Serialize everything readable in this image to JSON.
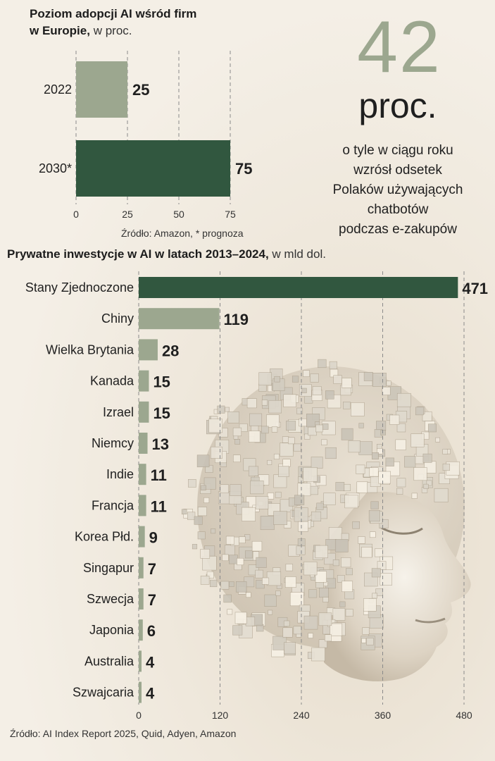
{
  "chart_data": [
    {
      "type": "bar",
      "orientation": "horizontal",
      "title": "Poziom adopcji AI wśród firm",
      "title_line2": "w Europie,",
      "unit": "w proc.",
      "categories": [
        "2022",
        "2030*"
      ],
      "values": [
        25,
        75
      ],
      "xlim": [
        0,
        75
      ],
      "xticks": [
        0,
        25,
        50,
        75
      ],
      "grid": true,
      "source": "Źródło: Amazon, * prognoza",
      "colors": [
        "#9ca78f",
        "#31573f"
      ]
    },
    {
      "type": "bar",
      "orientation": "horizontal",
      "title": "Prywatne inwestycje w AI w latach 2013–2024,",
      "unit": "w mld dol.",
      "categories": [
        "Stany Zjednoczone",
        "Chiny",
        "Wielka Brytania",
        "Kanada",
        "Izrael",
        "Niemcy",
        "Indie",
        "Francja",
        "Korea Płd.",
        "Singapur",
        "Szwecja",
        "Japonia",
        "Australia",
        "Szwajcaria"
      ],
      "values": [
        471,
        119,
        28,
        15,
        15,
        13,
        11,
        11,
        9,
        7,
        7,
        6,
        4,
        4
      ],
      "xlim": [
        0,
        480
      ],
      "xticks": [
        0,
        120,
        240,
        360,
        480
      ],
      "grid": true,
      "source": "Źródło: AI Index Report 2025, Quid, Adyen, Amazon",
      "colors": [
        "#31573f",
        "#9ca78f"
      ]
    }
  ],
  "highlight": {
    "number": "42",
    "unit": "proc.",
    "description": [
      "o tyle w ciągu roku",
      "wzrósł odsetek",
      "Polaków używających",
      "chatbotów",
      "podczas e-zakupów"
    ],
    "number_color": "#9ca78f"
  }
}
